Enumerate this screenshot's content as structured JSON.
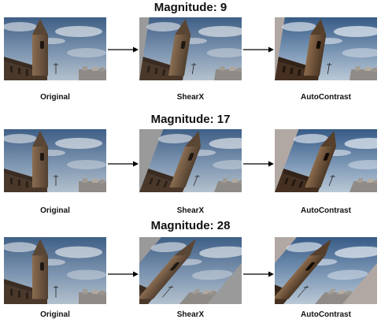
{
  "rows": [
    {
      "title": "Magnitude: 9",
      "labels": {
        "original": "Original",
        "shear": "ShearX",
        "auto": "AutoContrast"
      },
      "shear_magnitude": 9
    },
    {
      "title": "Magnitude: 17",
      "labels": {
        "original": "Original",
        "shear": "ShearX",
        "auto": "AutoContrast"
      },
      "shear_magnitude": 17
    },
    {
      "title": "Magnitude: 28",
      "labels": {
        "original": "Original",
        "shear": "ShearX",
        "auto": "AutoContrast"
      },
      "shear_magnitude": 28
    }
  ],
  "colors": {
    "fill_gray": "#9a9a9a",
    "fill_auto": "#b1a8a3",
    "sky_top": "#3f5f86",
    "sky_bottom": "#a9b9c9",
    "stone": "#7a6047"
  }
}
